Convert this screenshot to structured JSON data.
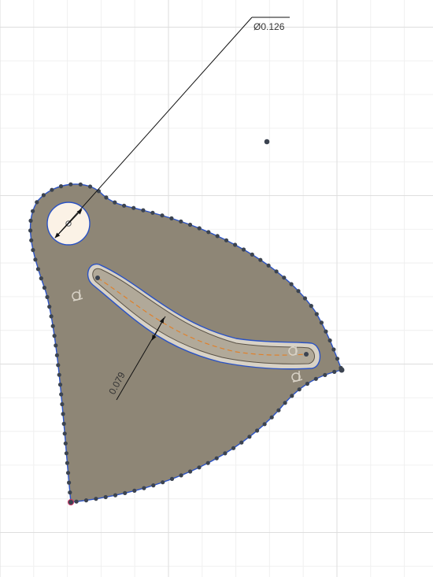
{
  "sketch": {
    "profile_color": "#8e8676",
    "edge_color": "#2a52c4",
    "point_color": "#3b4350",
    "hole_fill": "#fbf2e6",
    "slot_fill": "#d8d2c6",
    "centerline_color": "#e0802a"
  },
  "dimensions": {
    "diameter_label": "Ø0.126",
    "slot_width_label": "0.079"
  },
  "constraints": {
    "slot_start_icon": "coincident-constraint-icon",
    "slot_end_icon": "coincident-constraint-icon"
  }
}
